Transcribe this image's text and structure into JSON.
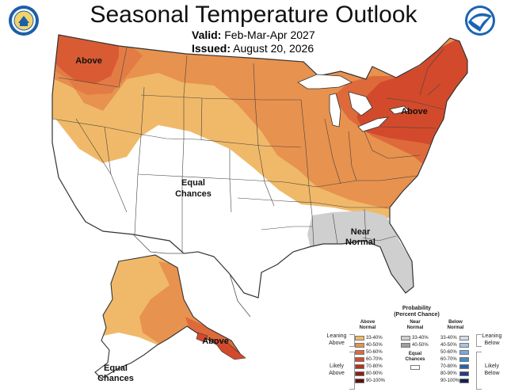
{
  "header": {
    "title": "Seasonal Temperature Outlook",
    "valid_label": "Valid:",
    "valid_value": "Feb-Mar-Apr 2027",
    "issued_label": "Issued:",
    "issued_value": "August 20, 2026"
  },
  "logos": [
    "commerce-seal-icon",
    "noaa-logo-icon"
  ],
  "map_labels": {
    "above_nw": "Above",
    "above_ne": "Above",
    "equal_chances_west_1": "Equal",
    "equal_chances_west_2": "Chances",
    "near_normal_1": "Near",
    "near_normal_2": "Normal",
    "above_alaska": "Above",
    "equal_chances_ak_1": "Equal",
    "equal_chances_ak_2": "Chances"
  },
  "colors": {
    "above_33_40": "#f0b969",
    "above_40_50": "#e8924f",
    "above_50_60": "#de6a3c",
    "above_60_70": "#d24a2b",
    "above_70_80": "#b8321c",
    "above_80_90": "#8e1f12",
    "above_90_100": "#5e1009",
    "near_33_40": "#cfcfcf",
    "near_40_50": "#9e9e9e",
    "below_33_40": "#cfdced",
    "below_40_50": "#a7c4e4",
    "below_50_60": "#79a9d9",
    "below_60_70": "#4a8ac9",
    "below_70_80": "#2b63aa",
    "below_80_90": "#1f3f80",
    "below_90_100": "#161f56"
  },
  "legend": {
    "title_1": "Probability",
    "title_2": "(Percent Chance)",
    "above_head_1": "Above",
    "above_head_2": "Normal",
    "near_head_1": "Near",
    "near_head_2": "Normal",
    "below_head_1": "Below",
    "below_head_2": "Normal",
    "leaning_above_1": "Leaning",
    "leaning_above_2": "Above",
    "likely_above_1": "Likely",
    "likely_above_2": "Above",
    "leaning_below_1": "Leaning",
    "leaning_below_2": "Below",
    "likely_below_1": "Likely",
    "likely_below_2": "Below",
    "equal_chances_1": "Equal",
    "equal_chances_2": "Chances",
    "above_rows": [
      "33-40%",
      "40-50%",
      "50-60%",
      "60-70%",
      "70-80%",
      "80-90%",
      "90-100%"
    ],
    "near_rows": [
      "33-40%",
      "40-50%"
    ],
    "below_rows": [
      "33-40%",
      "40-50%",
      "50-60%",
      "60-70%",
      "70-80%",
      "80-90%",
      "90-100%"
    ]
  }
}
